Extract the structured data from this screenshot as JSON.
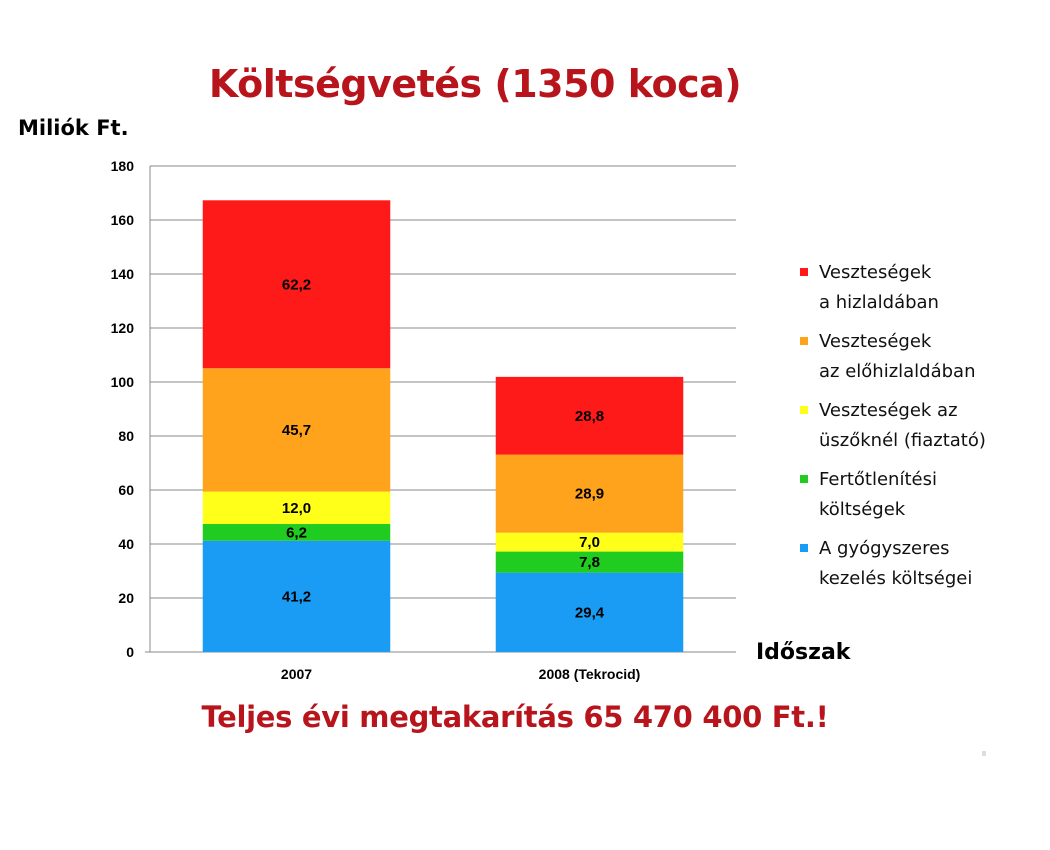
{
  "chart_data": {
    "type": "bar",
    "stacked": true,
    "title": "Költségvetés (1350 koca)",
    "ylabel": "Miliók Ft.",
    "xlabel": "Időszak",
    "ylim": [
      0,
      180
    ],
    "yticks": [
      0,
      20,
      40,
      60,
      80,
      100,
      120,
      140,
      160,
      180
    ],
    "grid": true,
    "legend_position": "right",
    "categories": [
      "2007",
      "2008 (Tekrocid)"
    ],
    "series": [
      {
        "name": "A gyógyszeres kezelés költségei",
        "color": "#1a9cf5",
        "values": [
          41.2,
          29.4
        ],
        "labels": [
          "41,2",
          "29,4"
        ]
      },
      {
        "name": "Fertőtlenítési költségek",
        "color": "#1fcc1f",
        "values": [
          6.2,
          7.8
        ],
        "labels": [
          "6,2",
          "7,8"
        ]
      },
      {
        "name": "Veszteségek az üszőknél (fiaztató)",
        "color": "#ffff1a",
        "values": [
          12.0,
          7.0
        ],
        "labels": [
          "12,0",
          "7,0"
        ]
      },
      {
        "name": "Veszteségek az előhizlaldában",
        "color": "#ffa21c",
        "values": [
          45.7,
          28.9
        ],
        "labels": [
          "45,7",
          "28,9"
        ]
      },
      {
        "name": "Veszteségek a hizlaldában",
        "color": "#ff1a1a",
        "values": [
          62.2,
          28.8
        ],
        "labels": [
          "62,2",
          "28,8"
        ]
      }
    ]
  },
  "legend": [
    {
      "text": "Veszteségek\na hizlaldában",
      "color": "#ff1a1a"
    },
    {
      "text": "Veszteségek\naz előhizlaldában",
      "color": "#ffa21c"
    },
    {
      "text": "Veszteségek az\nüszőknél (fiaztató)",
      "color": "#ffff1a"
    },
    {
      "text": "Fertőtlenítési\nköltségek",
      "color": "#1fcc1f"
    },
    {
      "text": "A gyógyszeres\nkezelés költségei",
      "color": "#1a9cf5"
    }
  ],
  "footer": "Teljes évi megtakarítás 65 470 400 Ft.!"
}
